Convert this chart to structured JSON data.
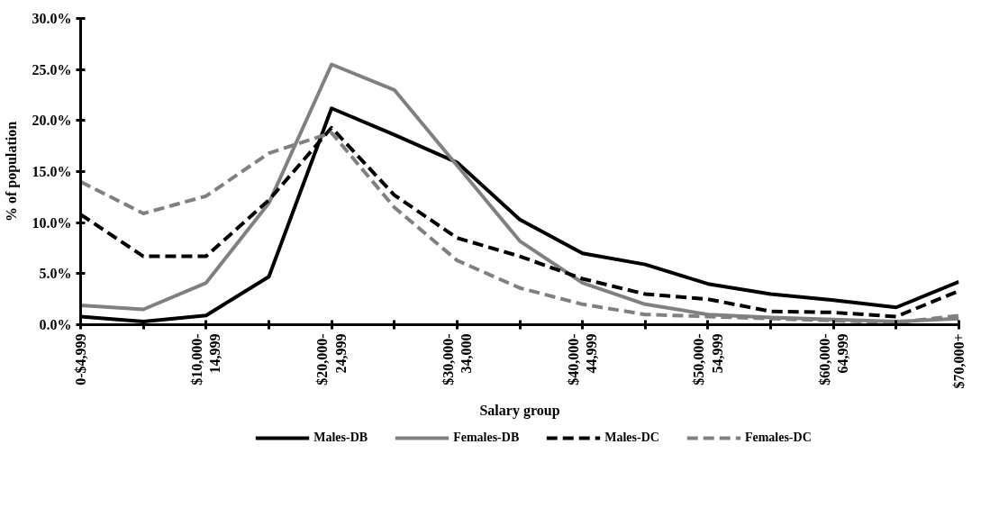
{
  "chart_data": {
    "type": "line",
    "xlabel": "Salary group",
    "ylabel": "% of population",
    "categories": [
      "0-$4,999",
      null,
      "$10,000-\n14,999",
      null,
      "$20,000-\n24,999",
      null,
      "$30,000-\n34,000",
      null,
      "$40,000-\n44,999",
      null,
      "$50,000-\n54,999",
      null,
      "$60,000-\n64,999",
      null,
      "$70,000+"
    ],
    "series": [
      {
        "name": "Males-DB",
        "color": "#000000",
        "line_style": "solid",
        "values": [
          0.8,
          0.3,
          0.9,
          4.7,
          21.2,
          18.6,
          15.9,
          10.3,
          7.0,
          5.9,
          4.0,
          3.0,
          2.4,
          1.7,
          4.2
        ]
      },
      {
        "name": "Females-DB",
        "color": "#808080",
        "line_style": "solid",
        "values": [
          1.9,
          1.5,
          4.1,
          11.9,
          25.5,
          23.0,
          15.6,
          8.2,
          4.1,
          2.0,
          1.0,
          0.7,
          0.5,
          0.3,
          0.6
        ]
      },
      {
        "name": "Males-DC",
        "color": "#000000",
        "line_style": "dashed",
        "values": [
          10.8,
          6.7,
          6.7,
          12.2,
          19.3,
          12.7,
          8.5,
          6.7,
          4.5,
          3.0,
          2.5,
          1.3,
          1.2,
          0.8,
          3.3
        ]
      },
      {
        "name": "Females-DC",
        "color": "#808080",
        "line_style": "dashed",
        "values": [
          14.0,
          10.9,
          12.6,
          16.8,
          18.8,
          11.5,
          6.3,
          3.6,
          2.0,
          1.0,
          0.8,
          0.6,
          0.4,
          0.2,
          0.9
        ]
      }
    ],
    "ylim": [
      0,
      30
    ],
    "yticks": [
      {
        "value": 0,
        "label": "0.0%"
      },
      {
        "value": 5,
        "label": "5.0%"
      },
      {
        "value": 10,
        "label": "10.0%"
      },
      {
        "value": 15,
        "label": "15.0%"
      },
      {
        "value": 20,
        "label": "20.0%"
      },
      {
        "value": 25,
        "label": "25.0%"
      },
      {
        "value": 30,
        "label": "30.0%"
      }
    ],
    "grid": false,
    "legend": "bottom",
    "marker": "none"
  }
}
